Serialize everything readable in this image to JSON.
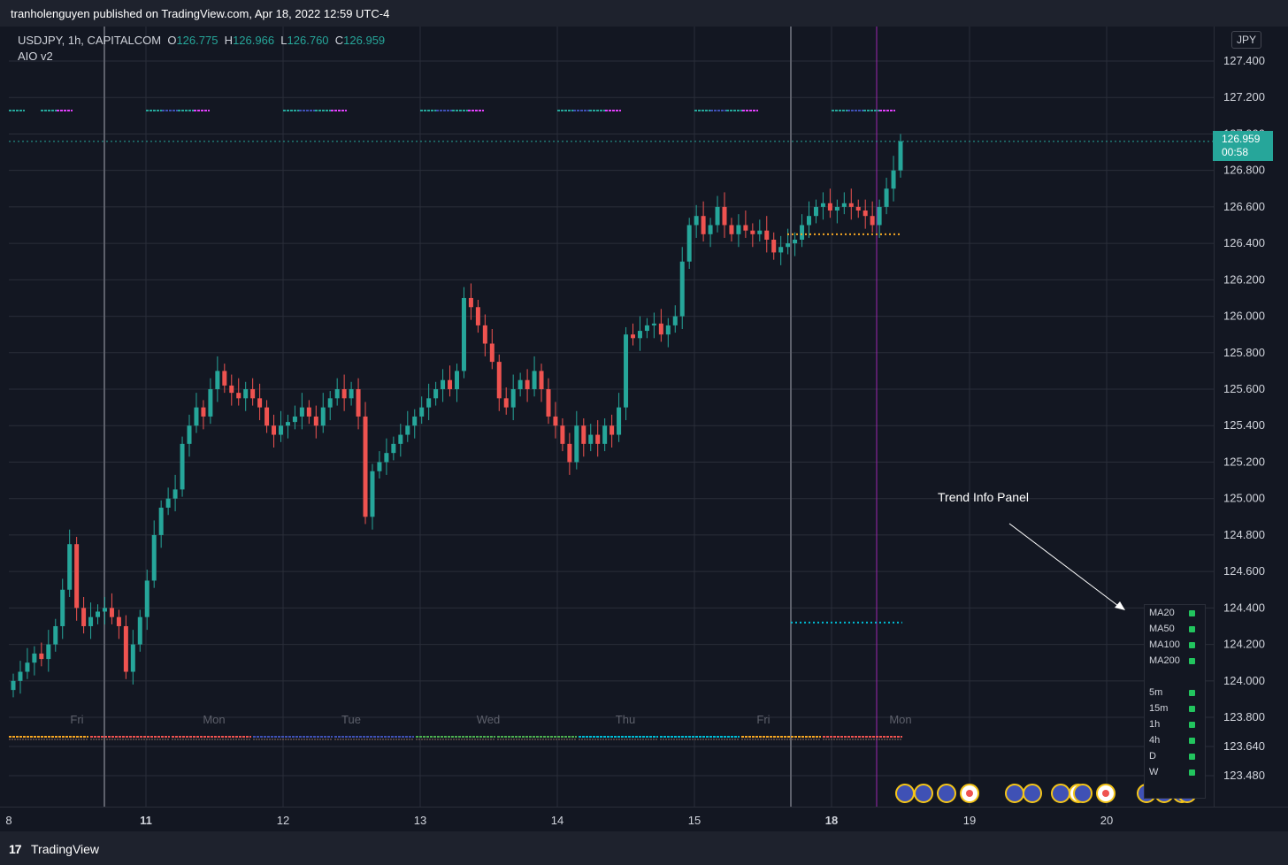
{
  "header": {
    "published": "tranholenguyen published on TradingView.com, Apr 18, 2022 12:59 UTC-4"
  },
  "legend": {
    "symbol": "USDJPY, 1h, CAPITALCOM",
    "o_label": "O",
    "o_value": "126.775",
    "h_label": "H",
    "h_value": "126.966",
    "l_label": "L",
    "l_value": "126.760",
    "c_label": "C",
    "c_value": "126.959",
    "indicator": "AIO v2"
  },
  "currency_button": "JPY",
  "last_price": {
    "price": "126.959",
    "countdown": "00:58"
  },
  "annotation": {
    "text": "Trend Info Panel"
  },
  "trend_panel": {
    "ma_rows": [
      {
        "label": "MA20",
        "status": "green"
      },
      {
        "label": "MA50",
        "status": "green"
      },
      {
        "label": "MA100",
        "status": "green"
      },
      {
        "label": "MA200",
        "status": "green"
      }
    ],
    "tf_rows": [
      {
        "label": "5m",
        "status": "green"
      },
      {
        "label": "15m",
        "status": "green"
      },
      {
        "label": "1h",
        "status": "green"
      },
      {
        "label": "4h",
        "status": "green"
      },
      {
        "label": "D",
        "status": "green"
      },
      {
        "label": "W",
        "status": "green"
      }
    ]
  },
  "footer": {
    "logo": "17",
    "brand": "TradingView"
  },
  "colors": {
    "up": "#26a69a",
    "down": "#ef5350",
    "bg": "#131722",
    "grid": "#2a2e39",
    "accent": "#26a69a"
  },
  "chart_data": {
    "type": "candlestick",
    "price_ticks": [
      "127.400",
      "127.200",
      "127.000",
      "126.800",
      "126.600",
      "126.400",
      "126.200",
      "126.000",
      "125.800",
      "125.600",
      "125.400",
      "125.200",
      "125.000",
      "124.800",
      "124.600",
      "124.400",
      "124.200",
      "124.000",
      "123.800",
      "123.640",
      "123.480"
    ],
    "time_ticks": [
      "8",
      "11",
      "12",
      "13",
      "14",
      "15",
      "18",
      "19",
      "20"
    ],
    "day_labels": [
      "Fri",
      "Mon",
      "Tue",
      "Wed",
      "Thu",
      "Fri",
      "Mon"
    ],
    "ylim": [
      123.4,
      127.6
    ],
    "closes": [
      124.0,
      124.05,
      124.1,
      124.15,
      124.12,
      124.2,
      124.3,
      124.5,
      124.75,
      124.4,
      124.3,
      124.35,
      124.38,
      124.4,
      124.35,
      124.3,
      124.05,
      124.2,
      124.35,
      124.55,
      124.8,
      124.95,
      125.0,
      125.05,
      125.3,
      125.4,
      125.5,
      125.45,
      125.6,
      125.7,
      125.62,
      125.58,
      125.55,
      125.6,
      125.55,
      125.5,
      125.4,
      125.35,
      125.4,
      125.42,
      125.45,
      125.5,
      125.45,
      125.4,
      125.5,
      125.55,
      125.6,
      125.55,
      125.6,
      125.45,
      124.9,
      125.15,
      125.2,
      125.25,
      125.3,
      125.35,
      125.4,
      125.45,
      125.5,
      125.55,
      125.6,
      125.65,
      125.6,
      125.7,
      126.1,
      126.05,
      125.95,
      125.85,
      125.75,
      125.55,
      125.5,
      125.6,
      125.65,
      125.6,
      125.7,
      125.6,
      125.45,
      125.4,
      125.3,
      125.2,
      125.4,
      125.3,
      125.35,
      125.3,
      125.4,
      125.35,
      125.5,
      125.9,
      125.88,
      125.92,
      125.95,
      125.96,
      125.9,
      125.95,
      126.0,
      126.3,
      126.5,
      126.55,
      126.45,
      126.5,
      126.6,
      126.5,
      126.45,
      126.5,
      126.47,
      126.45,
      126.47,
      126.42,
      126.35,
      126.38,
      126.4,
      126.42,
      126.5,
      126.55,
      126.6,
      126.62,
      126.58,
      126.6,
      126.62,
      126.6,
      126.58,
      126.55,
      126.5,
      126.6,
      126.7,
      126.8,
      126.96
    ],
    "levels": [
      {
        "name": "",
        "price": 126.45,
        "color": "#f5a623",
        "style": "dotted"
      },
      {
        "name": "",
        "price": 124.32,
        "color": "#00bcd4",
        "style": "dotted"
      },
      {
        "name": "",
        "price": 126.959,
        "color": "#26a69a",
        "style": "dotted"
      }
    ],
    "grid": true
  }
}
